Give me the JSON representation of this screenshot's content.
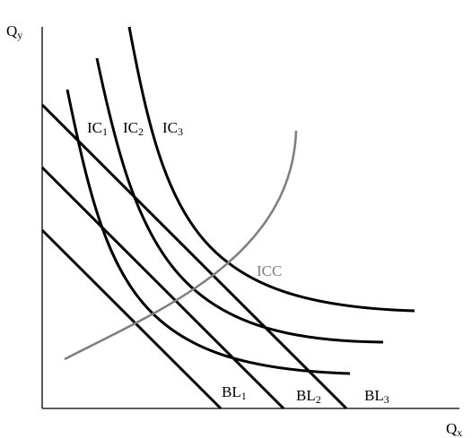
{
  "axes": {
    "y_label": "Q",
    "y_label_sub": "y",
    "x_label": "Q",
    "x_label_sub": "x"
  },
  "indifference_curves": [
    {
      "label": "IC",
      "sub": "1"
    },
    {
      "label": "IC",
      "sub": "2"
    },
    {
      "label": "IC",
      "sub": "3"
    }
  ],
  "budget_lines": [
    {
      "label": "BL",
      "sub": "1"
    },
    {
      "label": "BL",
      "sub": "2"
    },
    {
      "label": "BL",
      "sub": "3"
    }
  ],
  "icc": {
    "label": "ICC"
  },
  "colors": {
    "curves": "#000000",
    "icc": "#808080",
    "axes": "#000000"
  }
}
